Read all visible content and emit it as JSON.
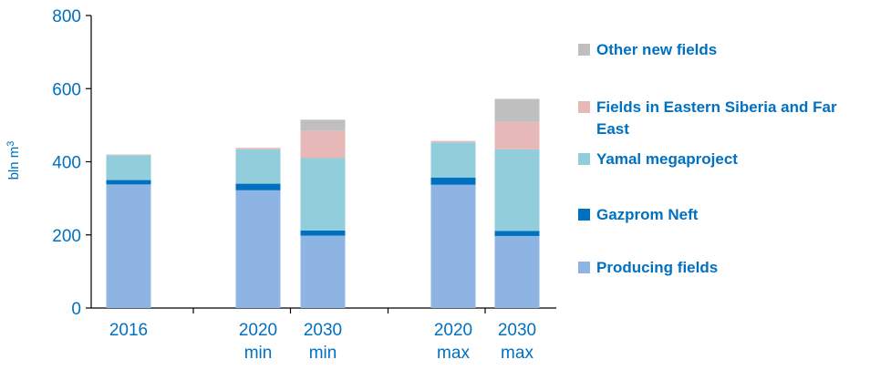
{
  "chart_data": {
    "type": "bar",
    "stacked": true,
    "categories": [
      {
        "lines": [
          "2016"
        ]
      },
      {
        "lines": [
          "2020",
          "min"
        ]
      },
      {
        "lines": [
          "2030",
          "min"
        ]
      },
      {
        "lines": [
          "2020",
          "max"
        ]
      },
      {
        "lines": [
          "2030",
          "max"
        ]
      }
    ],
    "ylabel": "bln m",
    "ylabel_superscript": "3",
    "ylim": [
      0,
      800
    ],
    "yticks": [
      "0",
      "200",
      "400",
      "600",
      "800"
    ],
    "grid": false,
    "legend_position": "right",
    "series": [
      {
        "name": "Producing fields",
        "color": "#8eb4e3",
        "values": [
          338,
          322,
          198,
          337,
          197
        ]
      },
      {
        "name": "Gazprom Neft",
        "color": "#0070c0",
        "values": [
          12,
          18,
          14,
          20,
          14
        ]
      },
      {
        "name": "Yamal megaproject",
        "color": "#92cddc",
        "values": [
          68,
          94,
          198,
          96,
          223
        ]
      },
      {
        "name": "Fields in Eastern Siberia and Far East",
        "color": "#e6b9b8",
        "values": [
          2,
          4,
          75,
          4,
          75
        ]
      },
      {
        "name": "Other new fields",
        "color": "#bfbfbf",
        "values": [
          0,
          0,
          30,
          0,
          63
        ]
      }
    ],
    "legend": [
      {
        "lines": [
          "Other new fields"
        ],
        "color": "#bfbfbf"
      },
      {
        "lines": [
          "Fields in Eastern Siberia and Far",
          "East"
        ],
        "color": "#e6b9b8"
      },
      {
        "lines": [
          "Yamal megaproject"
        ],
        "color": "#92cddc"
      },
      {
        "lines": [
          "Gazprom Neft"
        ],
        "color": "#0070c0"
      },
      {
        "lines": [
          "Producing fields"
        ],
        "color": "#8eb4e3"
      }
    ]
  }
}
